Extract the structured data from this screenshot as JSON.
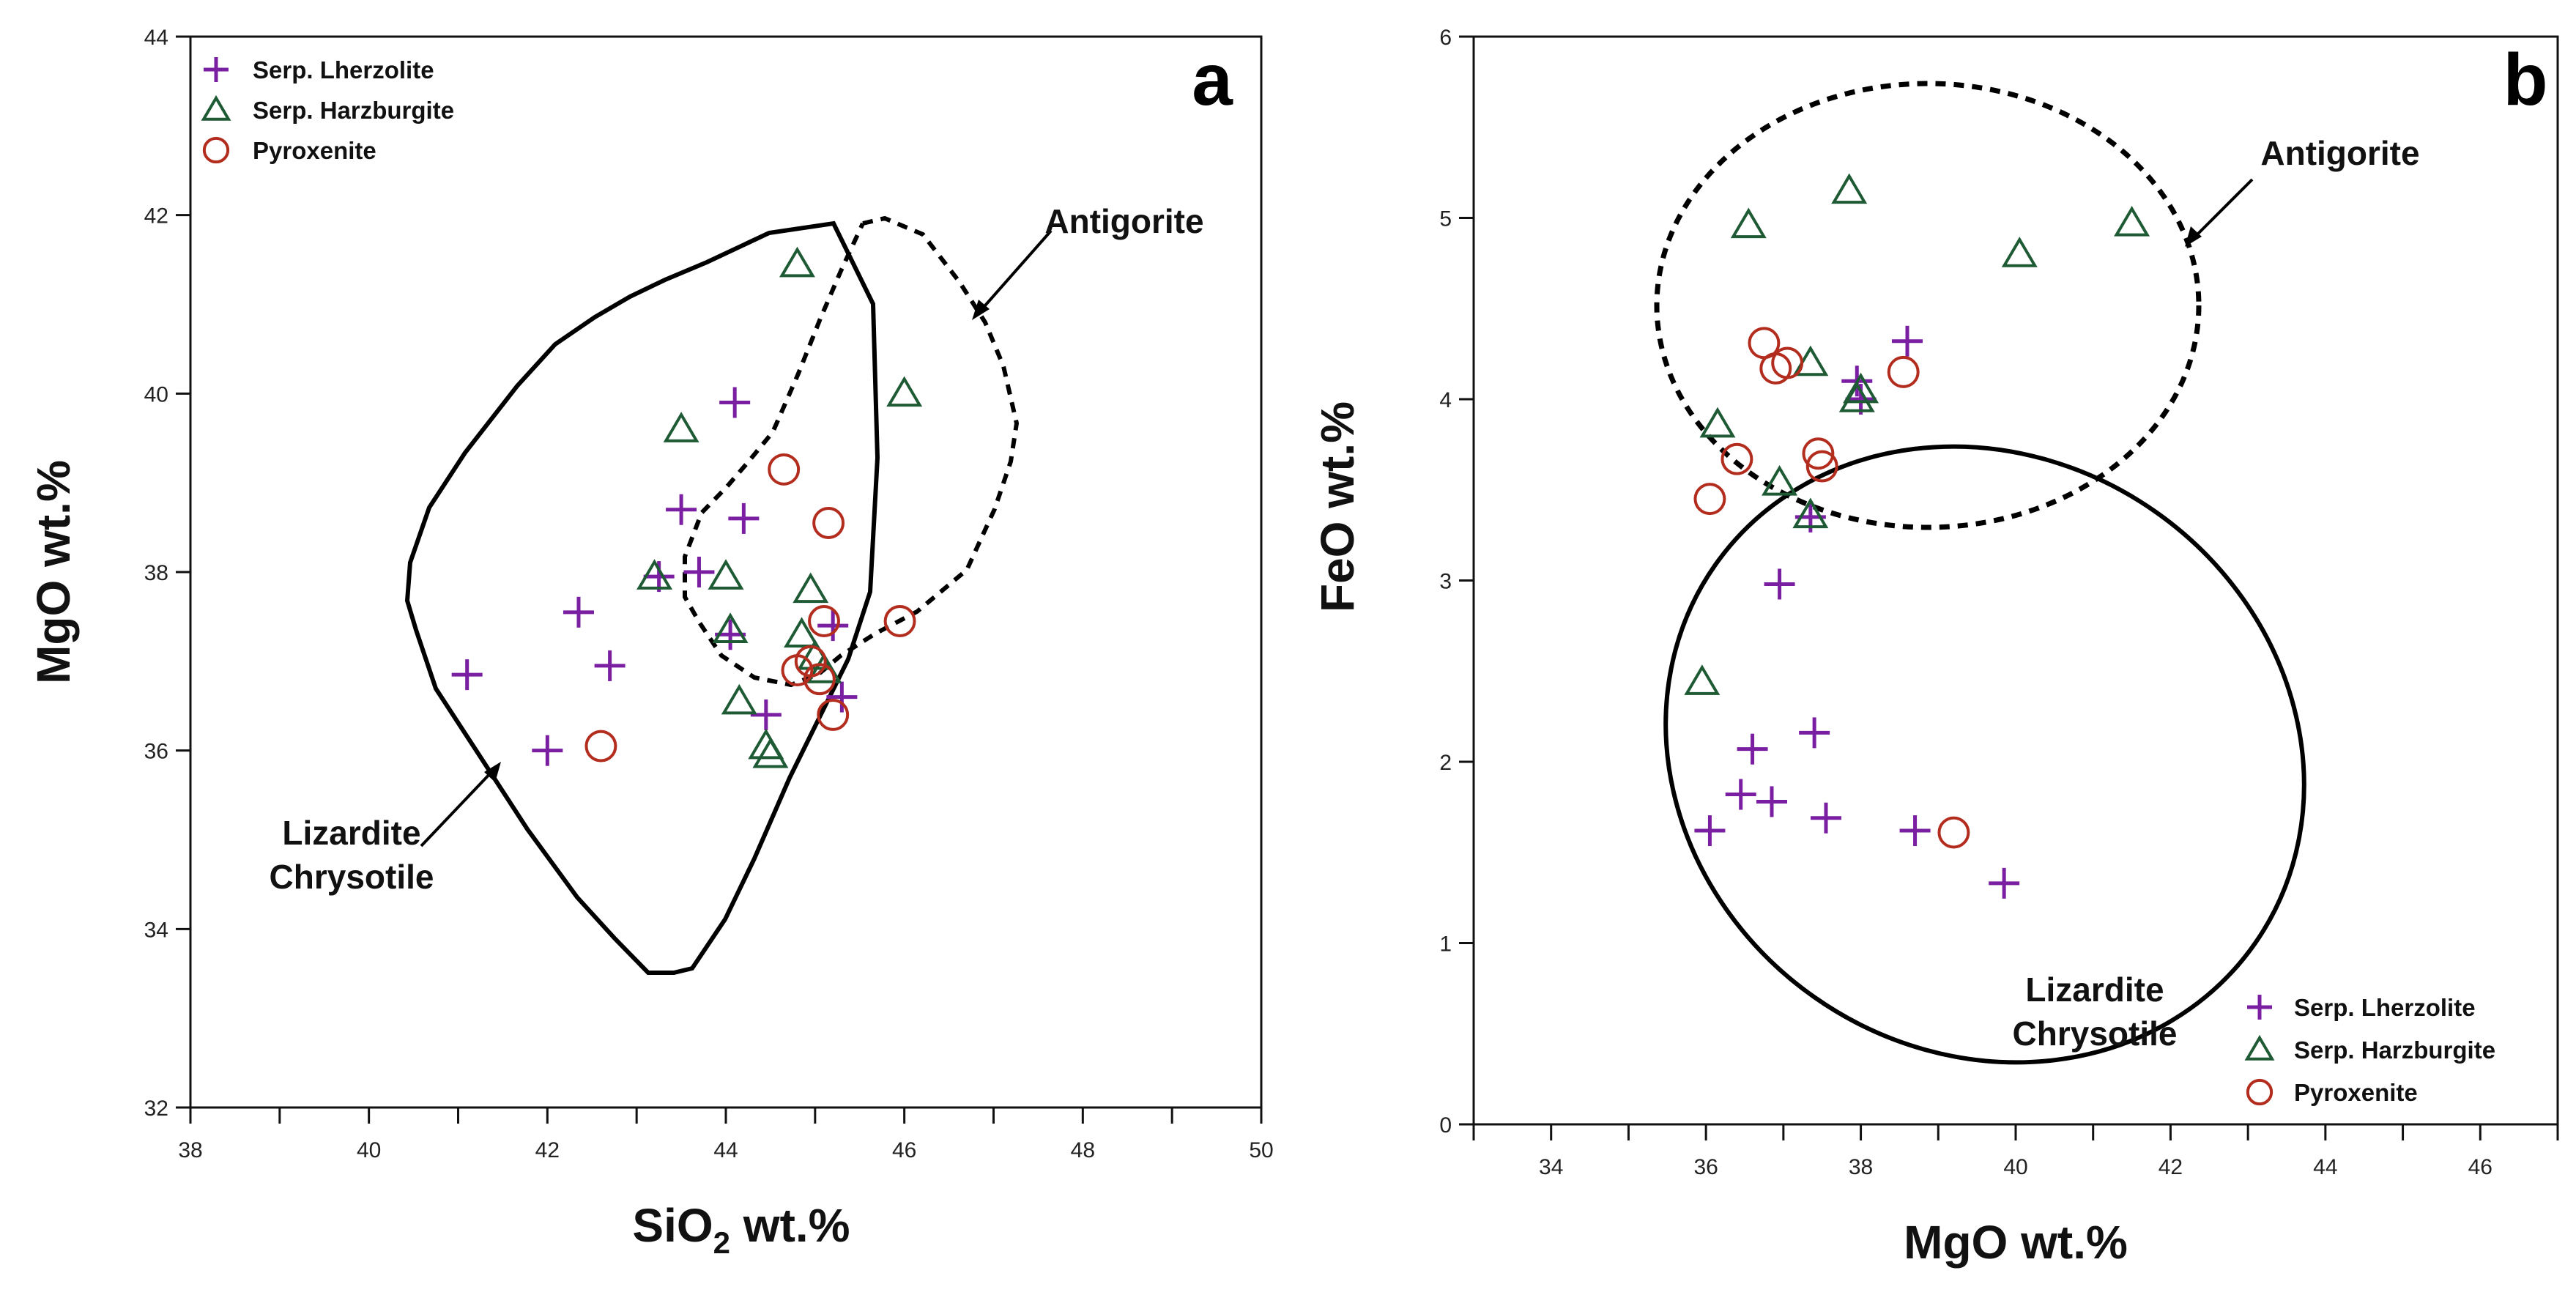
{
  "colors": {
    "lherzolite": "#7a1fa2",
    "harzburgite": "#1e5a34",
    "pyroxenite": "#b32d1f",
    "axis": "#111111"
  },
  "legend_labels": [
    "Serp. Lherzolite",
    "Serp. Harzburgite",
    "Pyroxenite"
  ],
  "chart_data": [
    {
      "type": "scatter",
      "panel": "a",
      "title": "",
      "xlabel_main": "SiO",
      "xlabel_sub": "2",
      "xlabel_rest": " wt.%",
      "ylabel": "MgO wt.%",
      "xlim": [
        38,
        50
      ],
      "ylim": [
        32,
        44
      ],
      "xticks": [
        38,
        40,
        42,
        44,
        46,
        48,
        50
      ],
      "yticks": [
        32,
        34,
        36,
        38,
        40,
        42,
        44
      ],
      "legend_position": "top-left",
      "annotations": {
        "antigorite": "Antigorite",
        "lizardite_line1": "Lizardite",
        "lizardite_line2": "Chrysotile"
      },
      "series": [
        {
          "name": "Serp. Lherzolite",
          "marker": "plus",
          "points": [
            [
              41.1,
              36.85
            ],
            [
              42.0,
              36.0
            ],
            [
              42.35,
              37.55
            ],
            [
              42.7,
              36.95
            ],
            [
              43.25,
              37.95
            ],
            [
              43.5,
              38.7
            ],
            [
              43.7,
              38.0
            ],
            [
              44.05,
              37.3
            ],
            [
              44.1,
              39.9
            ],
            [
              44.2,
              38.6
            ],
            [
              44.45,
              36.4
            ],
            [
              45.2,
              37.4
            ],
            [
              45.3,
              36.6
            ]
          ]
        },
        {
          "name": "Serp. Harzburgite",
          "marker": "triangle",
          "points": [
            [
              43.2,
              37.95
            ],
            [
              43.5,
              39.6
            ],
            [
              44.0,
              37.95
            ],
            [
              44.05,
              37.35
            ],
            [
              44.15,
              36.55
            ],
            [
              44.45,
              36.05
            ],
            [
              44.5,
              35.95
            ],
            [
              44.8,
              41.45
            ],
            [
              44.85,
              37.3
            ],
            [
              44.95,
              37.8
            ],
            [
              45.0,
              37.05
            ],
            [
              45.1,
              36.9
            ],
            [
              46.0,
              40.0
            ]
          ]
        },
        {
          "name": "Pyroxenite",
          "marker": "circle",
          "points": [
            [
              42.6,
              36.05
            ],
            [
              44.65,
              39.15
            ],
            [
              44.8,
              36.9
            ],
            [
              44.95,
              37.0
            ],
            [
              45.05,
              36.8
            ],
            [
              45.1,
              37.45
            ],
            [
              45.15,
              38.55
            ],
            [
              45.2,
              36.4
            ],
            [
              45.95,
              37.45
            ]
          ]
        }
      ]
    },
    {
      "type": "scatter",
      "panel": "b",
      "title": "",
      "xlabel": "MgO wt.%",
      "ylabel": "FeO wt.%",
      "xlim": [
        33,
        47
      ],
      "ylim": [
        0,
        6
      ],
      "xticks": [
        34,
        36,
        38,
        40,
        42,
        44,
        46
      ],
      "yticks": [
        0,
        1,
        2,
        3,
        4,
        5,
        6
      ],
      "legend_position": "bottom-right",
      "annotations": {
        "antigorite": "Antigorite",
        "lizardite_line1": "Lizardite",
        "lizardite_line2": "Chrysotile"
      },
      "series": [
        {
          "name": "Serp. Lherzolite",
          "marker": "plus",
          "points": [
            [
              36.05,
              1.62
            ],
            [
              36.45,
              1.82
            ],
            [
              36.6,
              2.07
            ],
            [
              36.85,
              1.78
            ],
            [
              36.95,
              2.98
            ],
            [
              37.35,
              3.35
            ],
            [
              37.4,
              2.16
            ],
            [
              37.55,
              1.69
            ],
            [
              37.95,
              4.1
            ],
            [
              38.0,
              4.0
            ],
            [
              38.6,
              4.32
            ],
            [
              38.7,
              1.62
            ],
            [
              39.85,
              1.33
            ]
          ]
        },
        {
          "name": "Serp. Harzburgite",
          "marker": "triangle",
          "points": [
            [
              35.95,
              2.44
            ],
            [
              36.15,
              3.86
            ],
            [
              36.55,
              4.96
            ],
            [
              36.95,
              3.54
            ],
            [
              37.35,
              3.36
            ],
            [
              37.35,
              4.2
            ],
            [
              37.85,
              5.15
            ],
            [
              37.95,
              4.0
            ],
            [
              38.0,
              4.05
            ],
            [
              40.05,
              4.8
            ],
            [
              41.5,
              4.97
            ]
          ]
        },
        {
          "name": "Pyroxenite",
          "marker": "circle",
          "points": [
            [
              36.05,
              3.45
            ],
            [
              36.4,
              3.67
            ],
            [
              36.75,
              4.31
            ],
            [
              36.9,
              4.17
            ],
            [
              37.05,
              4.2
            ],
            [
              37.45,
              3.7
            ],
            [
              37.5,
              3.63
            ],
            [
              38.55,
              4.15
            ],
            [
              39.2,
              1.61
            ]
          ]
        }
      ]
    }
  ]
}
